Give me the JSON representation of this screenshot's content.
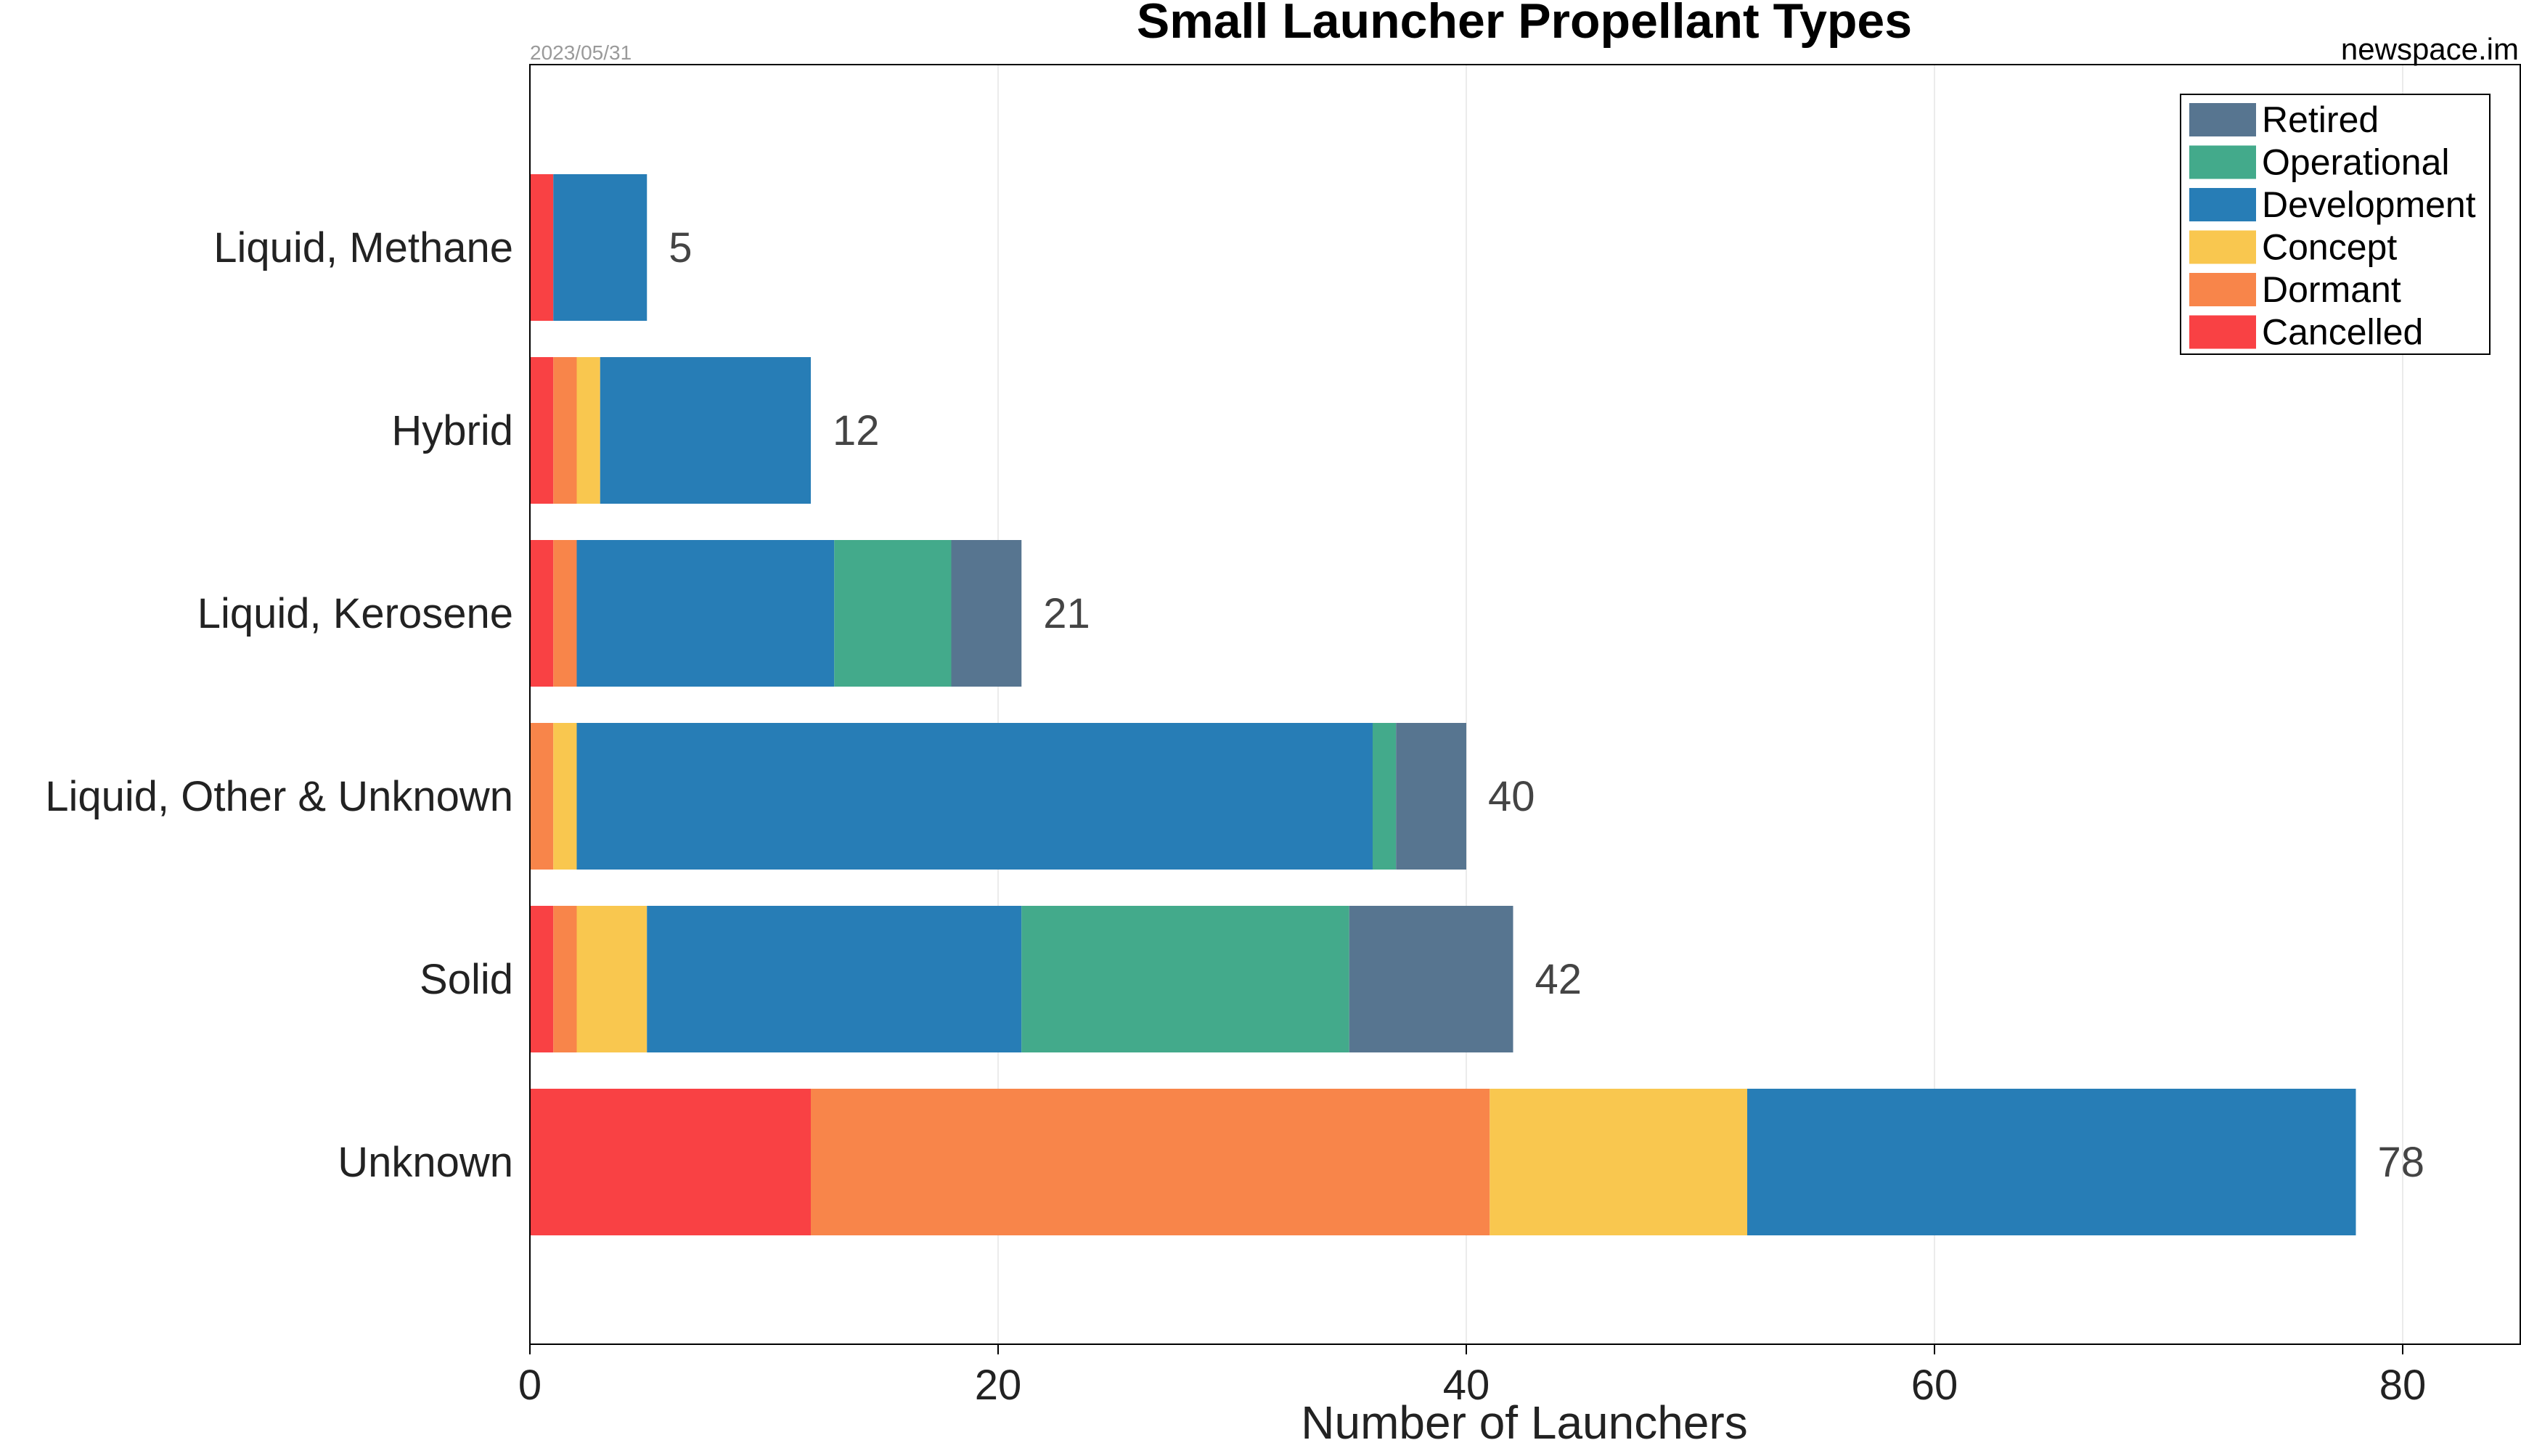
{
  "chart_data": {
    "type": "bar",
    "orientation": "horizontal",
    "stacked": true,
    "title": "Small Launcher Propellant Types",
    "date": "2023/05/31",
    "source": "newspace.im",
    "xlabel": "Number of Launchers",
    "ylabel": "",
    "xlim": [
      0,
      85
    ],
    "xticks": [
      "0",
      "20",
      "40",
      "60",
      "80"
    ],
    "grid": "vertical",
    "legend_position": "top-right",
    "categories": [
      "Liquid, Methane",
      "Hybrid",
      "Liquid, Kerosene",
      "Liquid, Other & Unknown",
      "Solid",
      "Unknown"
    ],
    "totals": [
      "5",
      "12",
      "21",
      "40",
      "42",
      "78"
    ],
    "series": [
      {
        "name": "Cancelled",
        "color": "#f94144",
        "values": [
          1,
          1,
          1,
          0,
          1,
          12
        ]
      },
      {
        "name": "Dormant",
        "color": "#f8854a",
        "values": [
          0,
          1,
          1,
          1,
          1,
          29
        ]
      },
      {
        "name": "Concept",
        "color": "#f9c74f",
        "values": [
          0,
          1,
          0,
          1,
          3,
          11
        ]
      },
      {
        "name": "Development",
        "color": "#277db6",
        "values": [
          4,
          9,
          11,
          34,
          16,
          26
        ]
      },
      {
        "name": "Operational",
        "color": "#43aa8b",
        "values": [
          0,
          0,
          5,
          1,
          14,
          0
        ]
      },
      {
        "name": "Retired",
        "color": "#577590",
        "values": [
          0,
          0,
          3,
          3,
          7,
          0
        ]
      }
    ],
    "legend_order": [
      "Retired",
      "Operational",
      "Development",
      "Concept",
      "Dormant",
      "Cancelled"
    ]
  }
}
